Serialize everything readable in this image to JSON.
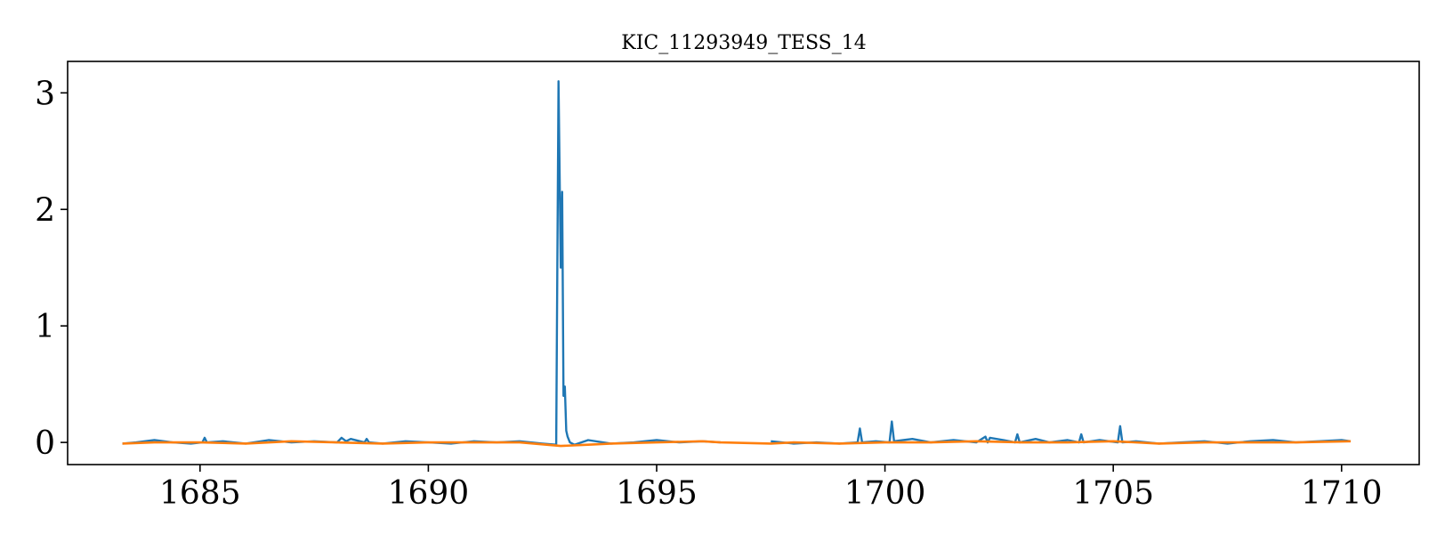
{
  "chart_data": {
    "type": "line",
    "title": "KIC_11293949_TESS_14",
    "xlabel": "",
    "ylabel": "",
    "xlim": [
      1682.1,
      1711.7
    ],
    "ylim": [
      -0.19,
      3.27
    ],
    "x_ticks": [
      1685,
      1690,
      1695,
      1700,
      1705,
      1710
    ],
    "y_ticks": [
      0,
      1,
      2,
      3
    ],
    "x_tick_labels": [
      "1685",
      "1690",
      "1695",
      "1700",
      "1705",
      "1710"
    ],
    "y_tick_labels": [
      "0",
      "1",
      "2",
      "3"
    ],
    "grid": false,
    "legend": "none",
    "colors": {
      "flux": "#1f77b4",
      "trend": "#ff7f0e"
    },
    "gap": [
      1696.4,
      1697.5
    ],
    "series": [
      {
        "id": "flux",
        "x": [
          1683.3,
          1683.6,
          1684.0,
          1684.4,
          1684.8,
          1685.05,
          1685.1,
          1685.15,
          1685.5,
          1686.0,
          1686.5,
          1687.0,
          1687.5,
          1688.0,
          1688.1,
          1688.2,
          1688.3,
          1688.6,
          1688.65,
          1688.7,
          1689.0,
          1689.5,
          1690.0,
          1690.5,
          1691.0,
          1691.5,
          1692.0,
          1692.5,
          1692.8,
          1692.85,
          1692.9,
          1692.93,
          1692.96,
          1692.99,
          1693.02,
          1693.05,
          1693.1,
          1693.2,
          1693.5,
          1694.0,
          1694.5,
          1695.0,
          1695.5,
          1696.0,
          1696.4,
          1697.5,
          1698.0,
          1698.5,
          1699.0,
          1699.4,
          1699.45,
          1699.5,
          1699.8,
          1700.1,
          1700.15,
          1700.2,
          1700.6,
          1701.0,
          1701.5,
          1702.0,
          1702.2,
          1702.25,
          1702.3,
          1702.6,
          1702.85,
          1702.9,
          1702.95,
          1703.3,
          1703.6,
          1704.0,
          1704.25,
          1704.3,
          1704.35,
          1704.7,
          1705.1,
          1705.15,
          1705.2,
          1705.5,
          1706.0,
          1706.5,
          1707.0,
          1707.5,
          1708.0,
          1708.5,
          1709.0,
          1709.5,
          1710.0,
          1710.2
        ],
        "y": [
          -0.01,
          0.0,
          0.02,
          0.0,
          -0.01,
          0.0,
          0.04,
          0.0,
          0.01,
          -0.01,
          0.02,
          0.0,
          0.01,
          0.0,
          0.04,
          0.01,
          0.03,
          0.0,
          0.03,
          0.0,
          -0.01,
          0.01,
          0.0,
          -0.01,
          0.01,
          0.0,
          0.01,
          -0.01,
          -0.02,
          3.1,
          1.5,
          2.15,
          0.4,
          0.48,
          0.1,
          0.05,
          0.0,
          -0.02,
          0.02,
          -0.01,
          0.0,
          0.02,
          0.0,
          0.01,
          0.0,
          0.01,
          -0.01,
          0.0,
          -0.01,
          0.0,
          0.12,
          0.0,
          0.01,
          0.0,
          0.18,
          0.01,
          0.03,
          0.0,
          0.02,
          0.0,
          0.05,
          0.0,
          0.04,
          0.02,
          0.0,
          0.07,
          0.0,
          0.03,
          0.0,
          0.02,
          0.0,
          0.07,
          0.0,
          0.02,
          0.0,
          0.14,
          0.0,
          0.01,
          -0.01,
          0.0,
          0.01,
          -0.01,
          0.01,
          0.02,
          0.0,
          0.01,
          0.02,
          0.01
        ]
      },
      {
        "id": "trend",
        "x": [
          1683.3,
          1684.0,
          1685.0,
          1686.0,
          1687.0,
          1688.0,
          1689.0,
          1690.0,
          1691.0,
          1692.0,
          1692.9,
          1693.5,
          1694.0,
          1695.0,
          1696.0,
          1696.4,
          1697.5,
          1698.0,
          1699.0,
          1700.0,
          1701.0,
          1702.0,
          1703.0,
          1704.0,
          1705.0,
          1706.0,
          1707.0,
          1708.0,
          1709.0,
          1710.2
        ],
        "y": [
          -0.01,
          0.0,
          0.0,
          -0.01,
          0.01,
          0.0,
          -0.01,
          0.0,
          0.0,
          0.0,
          -0.03,
          -0.02,
          -0.01,
          0.0,
          0.01,
          0.0,
          -0.01,
          0.0,
          -0.01,
          0.0,
          0.0,
          0.01,
          0.0,
          0.0,
          0.01,
          -0.01,
          0.0,
          0.0,
          0.0,
          0.01
        ]
      }
    ]
  }
}
